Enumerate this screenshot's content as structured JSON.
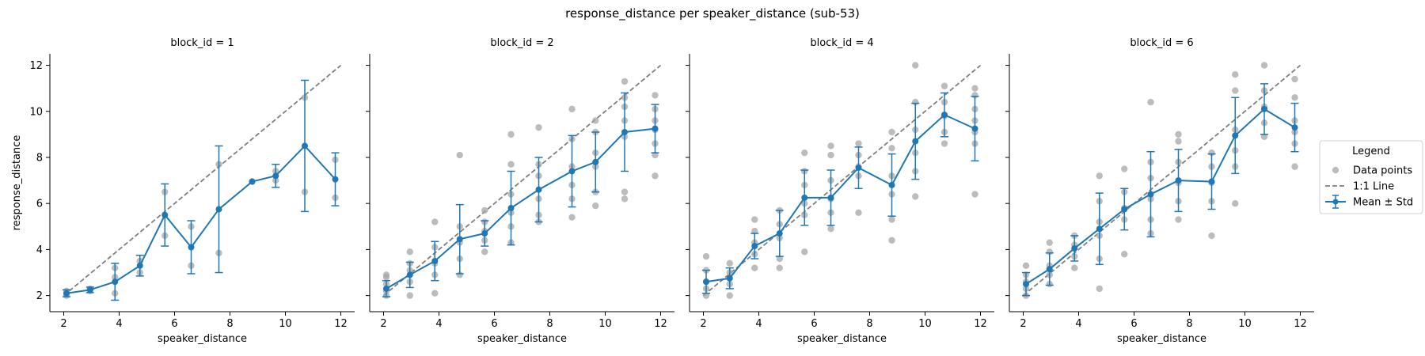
{
  "figure": {
    "title": "response_distance per speaker_distance (sub-53)"
  },
  "legend": {
    "title": "Legend",
    "placement": "outside-right",
    "items": [
      {
        "label": "Data points",
        "marker": "circle",
        "color": "#a6a6a6"
      },
      {
        "label": "1:1 Line",
        "marker": "dashed-line",
        "color": "#7f7f7f"
      },
      {
        "label": "Mean ± Std",
        "marker": "line-errorbar",
        "color": "#1f77b4"
      }
    ]
  },
  "colors": {
    "mean": "#1f77b4",
    "points": "#a6a6a6",
    "identity": "#7f7f7f"
  },
  "chart_data": [
    {
      "type": "line",
      "title": "block_id = 1",
      "xlabel": "speaker_distance",
      "ylabel": "response_distance",
      "xlim": [
        1.5,
        12.5
      ],
      "ylim": [
        1.3,
        12.5
      ],
      "xticks": [
        2,
        4,
        6,
        8,
        10,
        12
      ],
      "yticks": [
        2,
        4,
        6,
        8,
        10,
        12
      ],
      "grid": false,
      "identity_line": [
        [
          2,
          2
        ],
        [
          12,
          12
        ]
      ],
      "mean": {
        "x": [
          2.1,
          2.95,
          3.85,
          4.75,
          5.65,
          6.6,
          7.6,
          8.8,
          9.65,
          10.7,
          11.8
        ],
        "y": [
          2.1,
          2.25,
          2.6,
          3.3,
          5.5,
          4.1,
          5.75,
          6.95,
          7.2,
          8.5,
          7.05
        ],
        "std": [
          0.15,
          0.12,
          0.8,
          0.45,
          1.35,
          1.15,
          2.75,
          0.0,
          0.5,
          2.85,
          1.15
        ]
      },
      "points": [
        [
          2.1,
          2.0
        ],
        [
          2.1,
          2.2
        ],
        [
          2.95,
          2.2
        ],
        [
          2.95,
          2.3
        ],
        [
          3.85,
          2.1
        ],
        [
          3.85,
          2.8
        ],
        [
          3.85,
          3.2
        ],
        [
          4.75,
          3.0
        ],
        [
          4.75,
          3.5
        ],
        [
          5.65,
          4.6
        ],
        [
          5.65,
          6.5
        ],
        [
          6.6,
          3.3
        ],
        [
          6.6,
          5.0
        ],
        [
          7.6,
          3.85
        ],
        [
          7.6,
          7.7
        ],
        [
          8.8,
          6.95
        ],
        [
          9.65,
          7.0
        ],
        [
          9.65,
          7.4
        ],
        [
          10.7,
          6.5
        ],
        [
          10.7,
          10.6
        ],
        [
          11.8,
          6.25
        ],
        [
          11.8,
          7.9
        ]
      ]
    },
    {
      "type": "line",
      "title": "block_id = 2",
      "xlabel": "speaker_distance",
      "ylabel": "",
      "xlim": [
        1.5,
        12.5
      ],
      "ylim": [
        1.3,
        12.5
      ],
      "xticks": [
        2,
        4,
        6,
        8,
        10,
        12
      ],
      "yticks": [
        2,
        4,
        6,
        8,
        10,
        12
      ],
      "grid": false,
      "identity_line": [
        [
          2,
          2
        ],
        [
          12,
          12
        ]
      ],
      "mean": {
        "x": [
          2.1,
          2.95,
          3.85,
          4.75,
          5.65,
          6.6,
          7.6,
          8.8,
          9.65,
          10.7,
          11.8
        ],
        "y": [
          2.3,
          2.9,
          3.5,
          4.45,
          4.7,
          5.8,
          6.6,
          7.4,
          7.8,
          9.1,
          9.25
        ],
        "std": [
          0.35,
          0.55,
          0.85,
          1.5,
          0.55,
          1.6,
          1.4,
          1.55,
          1.3,
          1.7,
          1.05
        ]
      },
      "points": [
        [
          2.1,
          2.0
        ],
        [
          2.1,
          2.2
        ],
        [
          2.1,
          2.5
        ],
        [
          2.1,
          2.8
        ],
        [
          2.1,
          2.9
        ],
        [
          2.95,
          2.0
        ],
        [
          2.95,
          2.6
        ],
        [
          2.95,
          3.1
        ],
        [
          2.95,
          3.4
        ],
        [
          2.95,
          3.9
        ],
        [
          3.85,
          2.1
        ],
        [
          3.85,
          2.9
        ],
        [
          3.85,
          3.4
        ],
        [
          3.85,
          4.1
        ],
        [
          3.85,
          5.2
        ],
        [
          4.75,
          2.9
        ],
        [
          4.75,
          3.6
        ],
        [
          4.75,
          4.3
        ],
        [
          4.75,
          5.0
        ],
        [
          4.75,
          8.1
        ],
        [
          5.65,
          3.9
        ],
        [
          5.65,
          4.4
        ],
        [
          5.65,
          4.8
        ],
        [
          5.65,
          5.2
        ],
        [
          5.65,
          5.7
        ],
        [
          6.6,
          4.3
        ],
        [
          6.6,
          5.0
        ],
        [
          6.6,
          5.6
        ],
        [
          6.6,
          6.4
        ],
        [
          6.6,
          7.7
        ],
        [
          6.6,
          9.0
        ],
        [
          7.6,
          5.2
        ],
        [
          7.6,
          5.5
        ],
        [
          7.6,
          6.2
        ],
        [
          7.6,
          7.2
        ],
        [
          7.6,
          7.7
        ],
        [
          7.6,
          9.3
        ],
        [
          8.8,
          5.4
        ],
        [
          8.8,
          6.2
        ],
        [
          8.8,
          6.8
        ],
        [
          8.8,
          7.6
        ],
        [
          8.8,
          8.8
        ],
        [
          8.8,
          10.1
        ],
        [
          9.65,
          5.9
        ],
        [
          9.65,
          6.5
        ],
        [
          9.65,
          7.6
        ],
        [
          9.65,
          8.2
        ],
        [
          9.65,
          9.1
        ],
        [
          9.65,
          9.6
        ],
        [
          10.7,
          6.2
        ],
        [
          10.7,
          6.5
        ],
        [
          10.7,
          8.9
        ],
        [
          10.7,
          9.6
        ],
        [
          10.7,
          10.2
        ],
        [
          10.7,
          10.6
        ],
        [
          10.7,
          11.3
        ],
        [
          11.8,
          7.2
        ],
        [
          11.8,
          8.1
        ],
        [
          11.8,
          8.6
        ],
        [
          11.8,
          9.2
        ],
        [
          11.8,
          9.6
        ],
        [
          11.8,
          10.1
        ],
        [
          11.8,
          10.7
        ]
      ]
    },
    {
      "type": "line",
      "title": "block_id = 4",
      "xlabel": "speaker_distance",
      "ylabel": "",
      "xlim": [
        1.5,
        12.5
      ],
      "ylim": [
        1.3,
        12.5
      ],
      "xticks": [
        2,
        4,
        6,
        8,
        10,
        12
      ],
      "yticks": [
        2,
        4,
        6,
        8,
        10,
        12
      ],
      "grid": false,
      "identity_line": [
        [
          2,
          2
        ],
        [
          12,
          12
        ]
      ],
      "mean": {
        "x": [
          2.1,
          2.95,
          3.85,
          4.75,
          5.65,
          6.6,
          7.6,
          8.8,
          9.65,
          10.7,
          11.8
        ],
        "y": [
          2.6,
          2.75,
          4.15,
          4.7,
          6.25,
          6.25,
          7.55,
          6.8,
          8.7,
          9.85,
          9.25
        ],
        "std": [
          0.5,
          0.45,
          0.55,
          1.0,
          1.2,
          1.2,
          0.9,
          1.35,
          1.65,
          0.95,
          1.4
        ]
      },
      "points": [
        [
          2.1,
          2.0
        ],
        [
          2.1,
          2.3
        ],
        [
          2.1,
          2.6
        ],
        [
          2.1,
          3.1
        ],
        [
          2.1,
          3.7
        ],
        [
          2.95,
          2.0
        ],
        [
          2.95,
          2.5
        ],
        [
          2.95,
          3.0
        ],
        [
          2.95,
          3.4
        ],
        [
          3.85,
          3.2
        ],
        [
          3.85,
          3.8
        ],
        [
          3.85,
          4.3
        ],
        [
          3.85,
          4.8
        ],
        [
          3.85,
          5.3
        ],
        [
          4.75,
          3.2
        ],
        [
          4.75,
          3.6
        ],
        [
          4.75,
          4.5
        ],
        [
          4.75,
          5.1
        ],
        [
          4.75,
          5.7
        ],
        [
          5.65,
          3.9
        ],
        [
          5.65,
          5.5
        ],
        [
          5.65,
          6.0
        ],
        [
          5.65,
          6.8
        ],
        [
          5.65,
          7.4
        ],
        [
          5.65,
          8.2
        ],
        [
          6.6,
          4.9
        ],
        [
          6.6,
          5.6
        ],
        [
          6.6,
          6.2
        ],
        [
          6.6,
          7.0
        ],
        [
          6.6,
          8.1
        ],
        [
          6.6,
          8.5
        ],
        [
          7.6,
          5.6
        ],
        [
          7.6,
          7.2
        ],
        [
          7.6,
          7.6
        ],
        [
          7.6,
          8.1
        ],
        [
          7.6,
          8.6
        ],
        [
          8.8,
          4.4
        ],
        [
          8.8,
          5.3
        ],
        [
          8.8,
          6.4
        ],
        [
          8.8,
          7.2
        ],
        [
          8.8,
          8.4
        ],
        [
          8.8,
          9.1
        ],
        [
          9.65,
          6.3
        ],
        [
          9.65,
          7.4
        ],
        [
          9.65,
          8.2
        ],
        [
          9.65,
          9.2
        ],
        [
          9.65,
          10.4
        ],
        [
          9.65,
          12.0
        ],
        [
          10.7,
          8.6
        ],
        [
          10.7,
          9.1
        ],
        [
          10.7,
          9.8
        ],
        [
          10.7,
          10.4
        ],
        [
          10.7,
          11.1
        ],
        [
          11.8,
          6.4
        ],
        [
          11.8,
          8.6
        ],
        [
          11.8,
          9.1
        ],
        [
          11.8,
          9.6
        ],
        [
          11.8,
          10.1
        ],
        [
          11.8,
          10.7
        ],
        [
          11.8,
          11.0
        ]
      ]
    },
    {
      "type": "line",
      "title": "block_id = 6",
      "xlabel": "speaker_distance",
      "ylabel": "",
      "xlim": [
        1.5,
        12.5
      ],
      "ylim": [
        1.3,
        12.5
      ],
      "xticks": [
        2,
        4,
        6,
        8,
        10,
        12
      ],
      "yticks": [
        2,
        4,
        6,
        8,
        10,
        12
      ],
      "grid": false,
      "identity_line": [
        [
          2,
          2
        ],
        [
          12,
          12
        ]
      ],
      "mean": {
        "x": [
          2.1,
          2.95,
          3.85,
          4.75,
          5.65,
          6.6,
          7.6,
          8.8,
          9.65,
          10.7,
          11.8
        ],
        "y": [
          2.5,
          3.15,
          4.05,
          4.9,
          5.75,
          6.4,
          7.0,
          6.95,
          8.95,
          10.1,
          9.3
        ],
        "std": [
          0.5,
          0.7,
          0.55,
          1.55,
          0.9,
          1.85,
          1.35,
          1.2,
          1.65,
          1.1,
          1.05
        ]
      },
      "points": [
        [
          2.1,
          2.0
        ],
        [
          2.1,
          2.3
        ],
        [
          2.1,
          2.6
        ],
        [
          2.1,
          2.9
        ],
        [
          2.1,
          3.3
        ],
        [
          2.95,
          2.5
        ],
        [
          2.95,
          2.9
        ],
        [
          2.95,
          3.3
        ],
        [
          2.95,
          3.9
        ],
        [
          2.95,
          4.3
        ],
        [
          3.85,
          3.2
        ],
        [
          3.85,
          3.7
        ],
        [
          3.85,
          4.2
        ],
        [
          3.85,
          4.6
        ],
        [
          4.75,
          2.3
        ],
        [
          4.75,
          3.6
        ],
        [
          4.75,
          4.6
        ],
        [
          4.75,
          5.2
        ],
        [
          4.75,
          6.1
        ],
        [
          4.75,
          7.2
        ],
        [
          5.65,
          3.8
        ],
        [
          5.65,
          5.3
        ],
        [
          5.65,
          5.8
        ],
        [
          5.65,
          6.5
        ],
        [
          5.65,
          7.5
        ],
        [
          6.6,
          4.7
        ],
        [
          6.6,
          5.3
        ],
        [
          6.6,
          6.2
        ],
        [
          6.6,
          7.1
        ],
        [
          6.6,
          7.8
        ],
        [
          6.6,
          10.4
        ],
        [
          7.6,
          5.3
        ],
        [
          7.6,
          6.1
        ],
        [
          7.6,
          6.9
        ],
        [
          7.6,
          7.8
        ],
        [
          7.6,
          8.7
        ],
        [
          7.6,
          9.0
        ],
        [
          8.8,
          4.6
        ],
        [
          8.8,
          6.1
        ],
        [
          8.8,
          6.9
        ],
        [
          8.8,
          7.6
        ],
        [
          8.8,
          8.2
        ],
        [
          9.65,
          6.0
        ],
        [
          9.65,
          7.6
        ],
        [
          9.65,
          8.3
        ],
        [
          9.65,
          9.2
        ],
        [
          9.65,
          10.9
        ],
        [
          9.65,
          11.6
        ],
        [
          10.7,
          8.9
        ],
        [
          10.7,
          9.5
        ],
        [
          10.7,
          10.2
        ],
        [
          10.7,
          10.9
        ],
        [
          10.7,
          12.0
        ],
        [
          11.8,
          7.6
        ],
        [
          11.8,
          8.6
        ],
        [
          11.8,
          9.1
        ],
        [
          11.8,
          9.6
        ],
        [
          11.8,
          10.6
        ],
        [
          11.8,
          11.4
        ]
      ]
    }
  ]
}
